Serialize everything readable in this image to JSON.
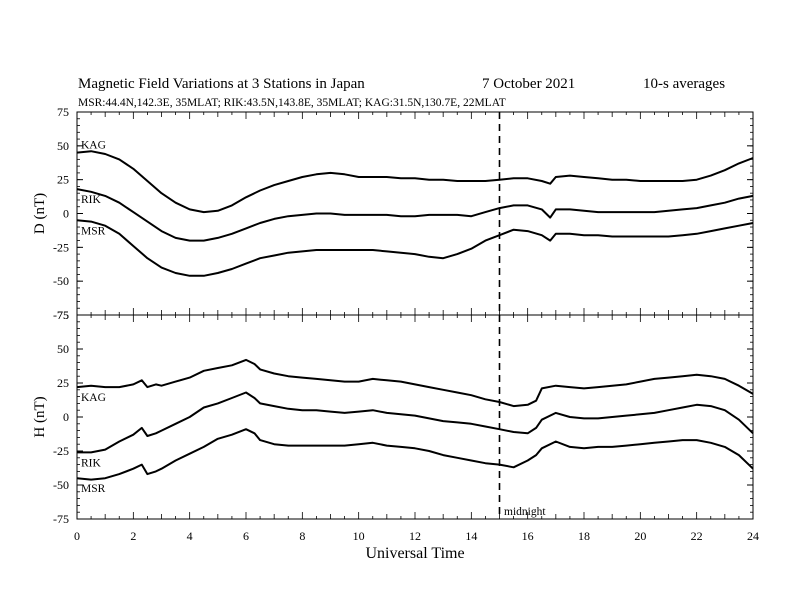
{
  "title": "Magnetic Field Variations at 3 Stations in Japan",
  "date_text": "7   October 2021",
  "avg_text": "10-s averages",
  "stations_line": "MSR:44.4N,142.3E, 35MLAT;  RIK:43.5N,143.8E, 35MLAT;  KAG:31.5N,130.7E, 22MLAT",
  "xlabel": "Universal Time",
  "midnight_label": "midnight",
  "chart_data": [
    {
      "type": "line",
      "ylabel": "D (nT)",
      "xlim": [
        0,
        24
      ],
      "ylim": [
        -75,
        75
      ],
      "yticks": [
        -75,
        -50,
        -25,
        0,
        25,
        50,
        75
      ],
      "xticks": [
        0,
        2,
        4,
        6,
        8,
        10,
        12,
        14,
        16,
        18,
        20,
        22,
        24
      ],
      "midnight_ut": 15,
      "series": [
        {
          "name": "KAG",
          "x": [
            0,
            0.5,
            1,
            1.5,
            2,
            2.5,
            3,
            3.5,
            4,
            4.5,
            5,
            5.5,
            6,
            6.5,
            7,
            7.5,
            8,
            8.5,
            9,
            9.5,
            10,
            10.5,
            11,
            11.5,
            12,
            12.5,
            13,
            13.5,
            14,
            14.5,
            15,
            15.5,
            16,
            16.5,
            16.8,
            17,
            17.5,
            18,
            18.5,
            19,
            19.5,
            20,
            20.5,
            21,
            21.5,
            22,
            22.5,
            23,
            23.5,
            24
          ],
          "y": [
            45,
            46,
            44,
            40,
            33,
            24,
            15,
            8,
            3,
            1,
            2,
            6,
            12,
            17,
            21,
            24,
            27,
            29,
            30,
            29,
            27,
            27,
            27,
            26,
            26,
            25,
            25,
            24,
            24,
            24,
            25,
            26,
            26,
            24,
            22,
            27,
            28,
            27,
            26,
            25,
            25,
            24,
            24,
            24,
            24,
            25,
            28,
            32,
            37,
            41
          ]
        },
        {
          "name": "RIK",
          "x": [
            0,
            0.5,
            1,
            1.5,
            2,
            2.5,
            3,
            3.5,
            4,
            4.5,
            5,
            5.5,
            6,
            6.5,
            7,
            7.5,
            8,
            8.5,
            9,
            9.5,
            10,
            10.5,
            11,
            11.5,
            12,
            12.5,
            13,
            13.5,
            14,
            14.5,
            15,
            15.5,
            16,
            16.5,
            16.8,
            17,
            17.5,
            18,
            18.5,
            19,
            19.5,
            20,
            20.5,
            21,
            21.5,
            22,
            22.5,
            23,
            23.5,
            24
          ],
          "y": [
            18,
            16,
            13,
            8,
            1,
            -6,
            -13,
            -18,
            -20,
            -20,
            -18,
            -15,
            -11,
            -7,
            -4,
            -2,
            -1,
            0,
            0,
            -1,
            -1,
            -1,
            -1,
            -2,
            -2,
            -1,
            -1,
            -1,
            -2,
            1,
            4,
            6,
            6,
            3,
            -3,
            3,
            3,
            2,
            1,
            1,
            1,
            1,
            1,
            2,
            3,
            4,
            6,
            8,
            11,
            13
          ]
        },
        {
          "name": "MSR",
          "x": [
            0,
            0.5,
            1,
            1.5,
            2,
            2.5,
            3,
            3.5,
            4,
            4.5,
            5,
            5.5,
            6,
            6.5,
            7,
            7.5,
            8,
            8.5,
            9,
            9.5,
            10,
            10.5,
            11,
            11.5,
            12,
            12.5,
            13,
            13.5,
            14,
            14.5,
            15,
            15.5,
            16,
            16.5,
            16.8,
            17,
            17.5,
            18,
            18.5,
            19,
            19.5,
            20,
            20.5,
            21,
            21.5,
            22,
            22.5,
            23,
            23.5,
            24
          ],
          "y": [
            -5,
            -6,
            -9,
            -15,
            -24,
            -33,
            -40,
            -44,
            -46,
            -46,
            -44,
            -41,
            -37,
            -33,
            -31,
            -29,
            -28,
            -27,
            -27,
            -27,
            -27,
            -27,
            -28,
            -29,
            -30,
            -32,
            -33,
            -30,
            -26,
            -20,
            -16,
            -12,
            -13,
            -16,
            -20,
            -15,
            -15,
            -16,
            -16,
            -17,
            -17,
            -17,
            -17,
            -17,
            -16,
            -15,
            -13,
            -11,
            -9,
            -7
          ]
        }
      ]
    },
    {
      "type": "line",
      "ylabel": "H (nT)",
      "xlim": [
        0,
        24
      ],
      "ylim": [
        -75,
        75
      ],
      "yticks": [
        -75,
        -50,
        -25,
        0,
        25,
        50,
        75
      ],
      "xticks": [
        0,
        2,
        4,
        6,
        8,
        10,
        12,
        14,
        16,
        18,
        20,
        22,
        24
      ],
      "midnight_ut": 15,
      "series": [
        {
          "name": "KAG",
          "x": [
            0,
            0.5,
            1,
            1.5,
            2,
            2.3,
            2.5,
            2.8,
            3,
            3.5,
            4,
            4.5,
            5,
            5.5,
            6,
            6.3,
            6.5,
            7,
            7.5,
            8,
            8.5,
            9,
            9.5,
            10,
            10.5,
            11,
            11.5,
            12,
            12.5,
            13,
            13.5,
            14,
            14.5,
            15,
            15.5,
            16,
            16.3,
            16.5,
            17,
            17.5,
            18,
            18.5,
            19,
            19.5,
            20,
            20.5,
            21,
            21.5,
            22,
            22.5,
            23,
            23.5,
            24
          ],
          "y": [
            22,
            23,
            22,
            22,
            24,
            27,
            22,
            24,
            23,
            26,
            29,
            34,
            36,
            38,
            42,
            39,
            35,
            32,
            30,
            29,
            28,
            27,
            26,
            26,
            28,
            27,
            26,
            24,
            22,
            20,
            18,
            16,
            13,
            11,
            8,
            9,
            12,
            21,
            23,
            22,
            21,
            22,
            23,
            24,
            26,
            28,
            29,
            30,
            31,
            30,
            28,
            23,
            17
          ]
        },
        {
          "name": "RIK",
          "x": [
            0,
            0.5,
            1,
            1.5,
            2,
            2.3,
            2.5,
            2.8,
            3,
            3.5,
            4,
            4.5,
            5,
            5.5,
            6,
            6.3,
            6.5,
            7,
            7.5,
            8,
            8.5,
            9,
            9.5,
            10,
            10.5,
            11,
            11.5,
            12,
            12.5,
            13,
            13.5,
            14,
            14.5,
            15,
            15.5,
            16,
            16.3,
            16.5,
            17,
            17.5,
            18,
            18.5,
            19,
            19.5,
            20,
            20.5,
            21,
            21.5,
            22,
            22.5,
            23,
            23.5,
            24
          ],
          "y": [
            -26,
            -26,
            -24,
            -18,
            -13,
            -8,
            -14,
            -12,
            -10,
            -5,
            0,
            7,
            10,
            14,
            18,
            14,
            10,
            8,
            6,
            5,
            5,
            4,
            3,
            4,
            5,
            3,
            2,
            1,
            -1,
            -3,
            -4,
            -5,
            -7,
            -9,
            -11,
            -12,
            -8,
            -2,
            3,
            0,
            -1,
            -1,
            0,
            1,
            2,
            3,
            5,
            7,
            9,
            8,
            5,
            -2,
            -12
          ]
        },
        {
          "name": "MSR",
          "x": [
            0,
            0.5,
            1,
            1.5,
            2,
            2.3,
            2.5,
            2.8,
            3,
            3.5,
            4,
            4.5,
            5,
            5.5,
            6,
            6.3,
            6.5,
            7,
            7.5,
            8,
            8.5,
            9,
            9.5,
            10,
            10.5,
            11,
            11.5,
            12,
            12.5,
            13,
            13.5,
            14,
            14.5,
            15,
            15.5,
            16,
            16.3,
            16.5,
            17,
            17.5,
            18,
            18.5,
            19,
            19.5,
            20,
            20.5,
            21,
            21.5,
            22,
            22.5,
            23,
            23.5,
            24
          ],
          "y": [
            -45,
            -46,
            -45,
            -42,
            -38,
            -35,
            -42,
            -40,
            -38,
            -32,
            -27,
            -22,
            -16,
            -13,
            -9,
            -12,
            -17,
            -20,
            -21,
            -21,
            -21,
            -21,
            -21,
            -20,
            -19,
            -21,
            -22,
            -23,
            -25,
            -28,
            -30,
            -32,
            -34,
            -35,
            -37,
            -32,
            -28,
            -23,
            -18,
            -22,
            -23,
            -22,
            -22,
            -21,
            -20,
            -19,
            -18,
            -17,
            -17,
            -19,
            -22,
            -28,
            -38
          ]
        }
      ]
    }
  ]
}
